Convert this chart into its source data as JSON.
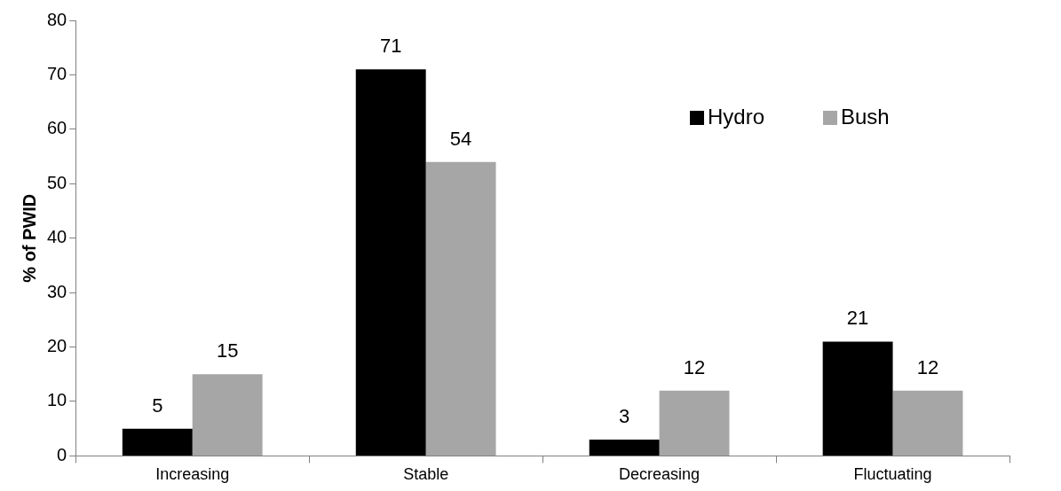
{
  "chart_data": {
    "type": "bar",
    "ylabel": "% of PWID",
    "categories": [
      "Increasing",
      "Stable",
      "Decreasing",
      "Fluctuating"
    ],
    "series": [
      {
        "name": "Hydro",
        "color": "#000000",
        "values": [
          5,
          71,
          3,
          21
        ]
      },
      {
        "name": "Bush",
        "color": "#a6a6a6",
        "values": [
          15,
          54,
          12,
          12
        ]
      }
    ],
    "ylim": [
      0,
      80
    ],
    "yticks": [
      0,
      10,
      20,
      30,
      40,
      50,
      60,
      70,
      80
    ],
    "grid": false,
    "legend": "top right",
    "data_labels": true
  }
}
